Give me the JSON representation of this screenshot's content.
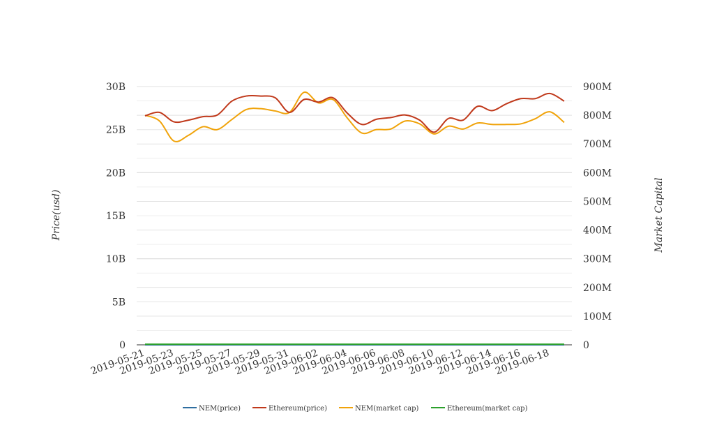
{
  "chart_data": {
    "type": "line",
    "title": "",
    "y_left_label": "Price(usd)",
    "y_right_label": "Market Capital",
    "y_left_ticks": [
      "0",
      "5B",
      "10B",
      "15B",
      "20B",
      "25B",
      "30B"
    ],
    "y_right_ticks": [
      "0",
      "100M",
      "200M",
      "300M",
      "400M",
      "500M",
      "600M",
      "700M",
      "800M",
      "900M"
    ],
    "y_left_range": [
      0,
      30000000000
    ],
    "y_right_range": [
      0,
      900000000
    ],
    "x_tick_labels": [
      "2019-05-21",
      "2019-05-23",
      "2019-05-25",
      "2019-05-27",
      "2019-05-29",
      "2019-05-31",
      "2019-06-02",
      "2019-06-04",
      "2019-06-06",
      "2019-06-08",
      "2019-06-10",
      "2019-06-12",
      "2019-06-14",
      "2019-06-16",
      "2019-06-18"
    ],
    "x": [
      "2019-05-21",
      "2019-05-22",
      "2019-05-23",
      "2019-05-24",
      "2019-05-25",
      "2019-05-26",
      "2019-05-27",
      "2019-05-28",
      "2019-05-29",
      "2019-05-30",
      "2019-05-31",
      "2019-06-01",
      "2019-06-02",
      "2019-06-03",
      "2019-06-04",
      "2019-06-05",
      "2019-06-06",
      "2019-06-07",
      "2019-06-08",
      "2019-06-09",
      "2019-06-10",
      "2019-06-11",
      "2019-06-12",
      "2019-06-13",
      "2019-06-14",
      "2019-06-15",
      "2019-06-16",
      "2019-06-17",
      "2019-06-18",
      "2019-06-19"
    ],
    "grid": true,
    "legend_position": "bottom",
    "series": [
      {
        "name": "NEM(price)",
        "axis": "left",
        "color": "#2f6ea0",
        "values": [
          0.1,
          0.1,
          0.1,
          0.1,
          0.1,
          0.1,
          0.1,
          0.1,
          0.1,
          0.1,
          0.1,
          0.1,
          0.1,
          0.1,
          0.1,
          0.1,
          0.1,
          0.1,
          0.1,
          0.1,
          0.1,
          0.1,
          0.1,
          0.1,
          0.1,
          0.1,
          0.1,
          0.1,
          0.1,
          0.1
        ]
      },
      {
        "name": "Ethereum(price)",
        "axis": "left",
        "color": "#c0391b",
        "values": [
          26600000000.0,
          27000000000.0,
          25900000000.0,
          26100000000.0,
          26500000000.0,
          26700000000.0,
          28300000000.0,
          28900000000.0,
          28900000000.0,
          28700000000.0,
          27000000000.0,
          28500000000.0,
          28200000000.0,
          28700000000.0,
          26900000000.0,
          25600000000.0,
          26200000000.0,
          26400000000.0,
          26700000000.0,
          26100000000.0,
          24700000000.0,
          26300000000.0,
          26100000000.0,
          27700000000.0,
          27200000000.0,
          28000000000.0,
          28600000000.0,
          28600000000.0,
          29200000000.0,
          28300000000.0
        ]
      },
      {
        "name": "NEM(market cap)",
        "axis": "right",
        "color": "#f0a30a",
        "values": [
          800000000,
          780000000,
          710000000,
          730000000,
          760000000,
          750000000,
          785000000,
          820000000,
          823000000,
          815000000,
          810000000,
          880000000,
          843000000,
          855000000,
          790000000,
          738000000,
          750000000,
          752000000,
          780000000,
          770000000,
          735000000,
          762000000,
          752000000,
          773000000,
          768000000,
          768000000,
          770000000,
          788000000,
          812000000,
          775000000
        ]
      },
      {
        "name": "Ethereum(market cap)",
        "axis": "right",
        "color": "#2ca02c",
        "values": [
          2000000,
          2000000,
          2000000,
          2000000,
          2000000,
          2000000,
          2000000,
          2000000,
          2000000,
          2000000,
          2000000,
          2000000,
          2000000,
          2000000,
          2000000,
          2000000,
          2000000,
          2000000,
          2000000,
          2000000,
          2000000,
          2000000,
          2000000,
          2000000,
          2000000,
          2000000,
          2000000,
          2000000,
          2000000,
          2000000
        ]
      }
    ]
  }
}
